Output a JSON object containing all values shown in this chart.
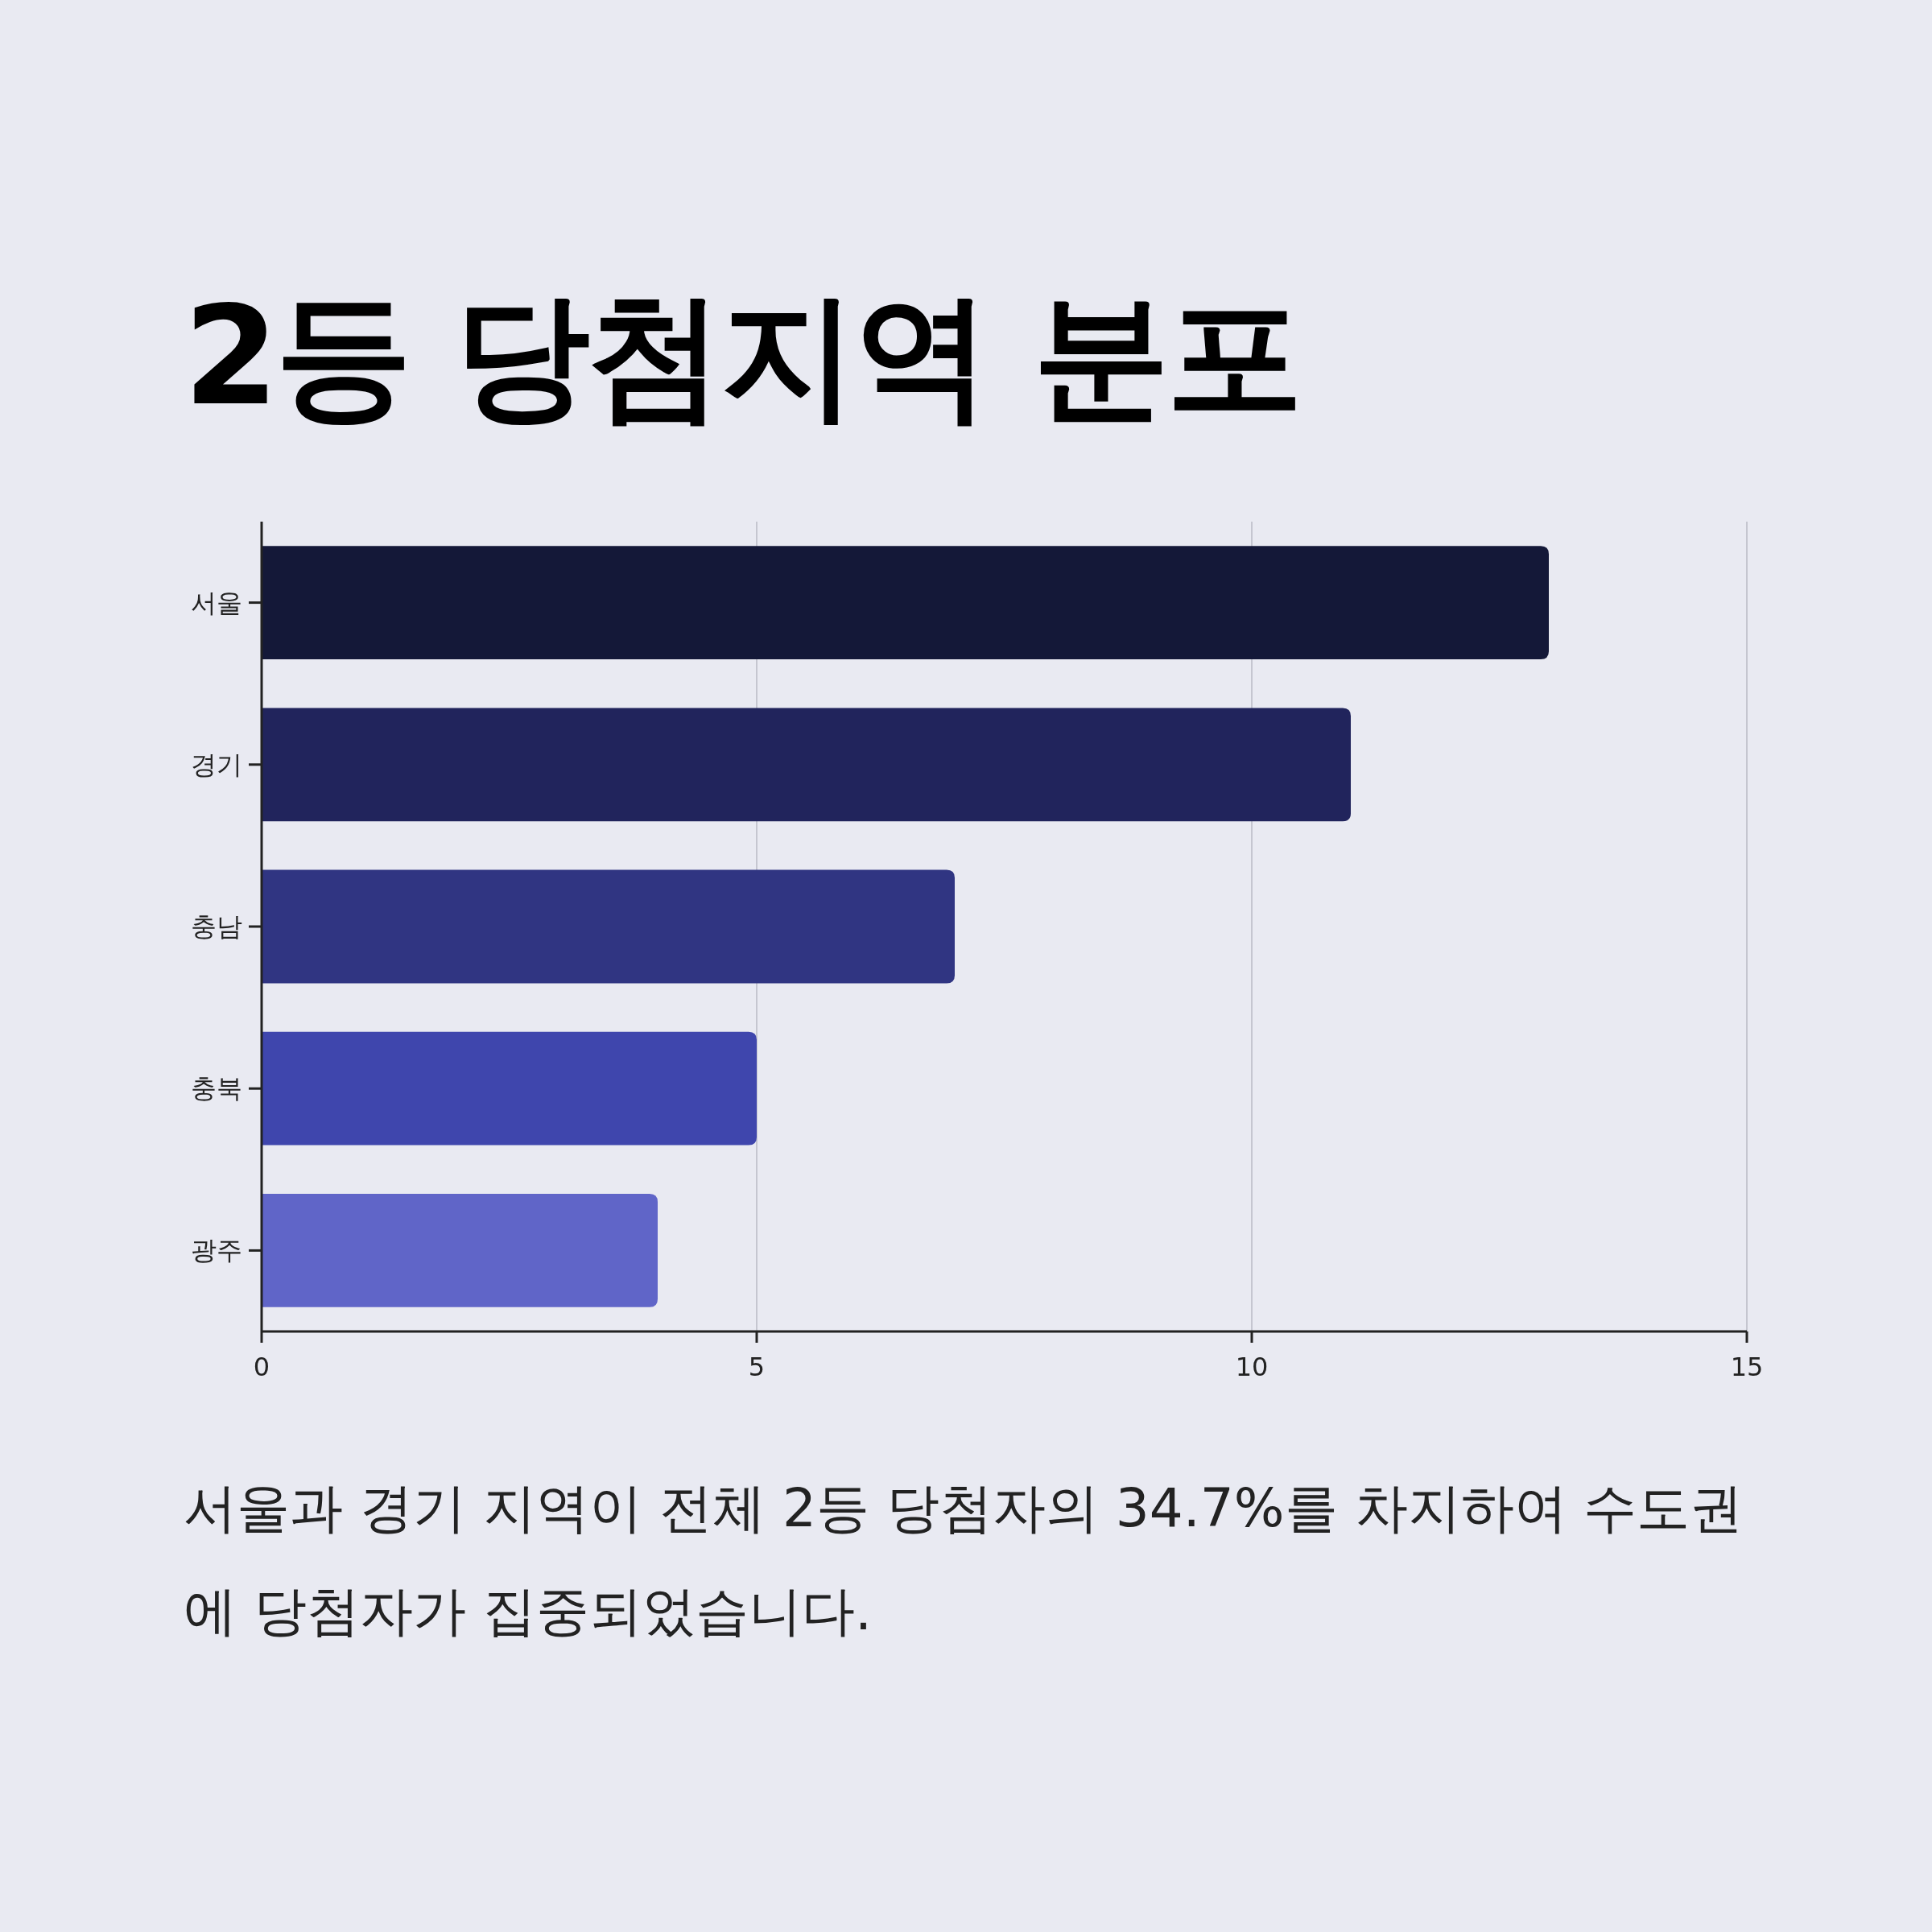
{
  "chart_data": {
    "type": "bar",
    "orientation": "horizontal",
    "title": "2등 당첨지역 분포",
    "categories": [
      "서울",
      "경기",
      "충남",
      "충북",
      "광주"
    ],
    "values": [
      13,
      11,
      7,
      5,
      4
    ],
    "colors": [
      "#141838",
      "#21245c",
      "#303582",
      "#3f46ad",
      "#6065c8"
    ],
    "xlim": [
      0,
      15
    ],
    "xticks": [
      0,
      5,
      10,
      15
    ],
    "grid": "x",
    "annotations": [
      "서울과 경기 지역이 전체 2등 당첨자의 34.7%를 차지하여 수도권에 당첨자가 집중되었습니다."
    ]
  }
}
